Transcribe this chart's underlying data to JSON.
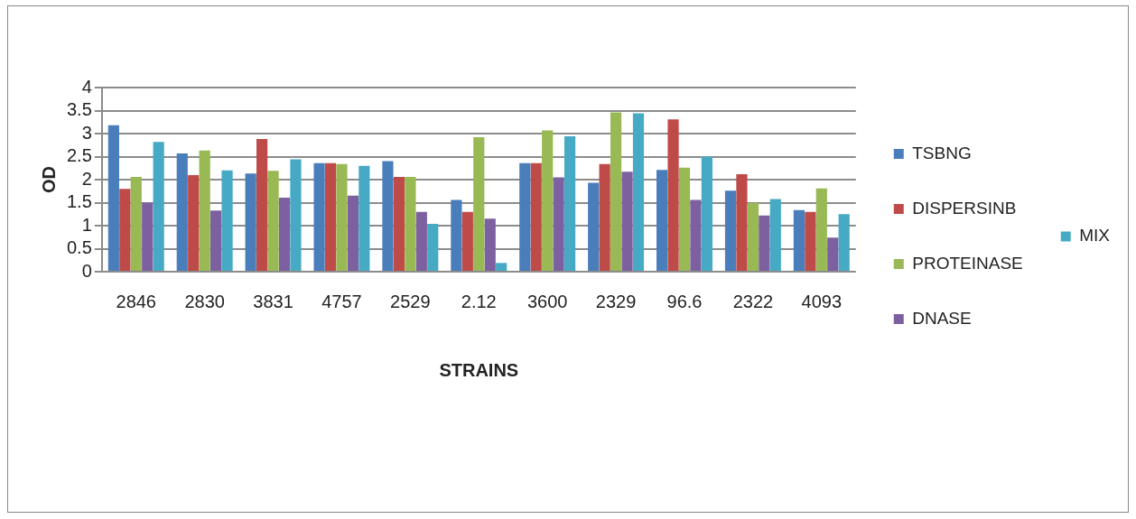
{
  "chart_data": {
    "type": "bar",
    "xlabel": "STRAINS",
    "ylabel": "OD",
    "categories": [
      "2846",
      "2830",
      "3831",
      "4757",
      "2529",
      "2.12",
      "3600",
      "2329",
      "96.6",
      "2322",
      "4093"
    ],
    "series": [
      {
        "name": "TSBNG",
        "color": "#4a7ebb",
        "values": [
          3.18,
          2.57,
          2.13,
          2.36,
          2.4,
          1.56,
          2.36,
          1.93,
          2.21,
          1.76,
          1.34
        ]
      },
      {
        "name": "DISPERSINB",
        "color": "#be4b48",
        "values": [
          1.8,
          2.1,
          2.88,
          2.36,
          2.06,
          1.3,
          2.36,
          2.34,
          3.31,
          2.12,
          1.3
        ]
      },
      {
        "name": "PROTEINASE",
        "color": "#98b954",
        "values": [
          2.06,
          2.63,
          2.19,
          2.34,
          2.06,
          2.92,
          3.07,
          3.46,
          2.26,
          1.49,
          1.81
        ]
      },
      {
        "name": "DNASE",
        "color": "#7d60a0",
        "values": [
          1.5,
          1.33,
          1.61,
          1.65,
          1.3,
          1.15,
          2.05,
          2.17,
          1.56,
          1.22,
          0.74
        ]
      },
      {
        "name": "MIX",
        "color": "#46aac5",
        "values": [
          2.82,
          2.2,
          2.44,
          2.3,
          1.04,
          0.19,
          2.94,
          3.44,
          2.5,
          1.58,
          1.25
        ]
      }
    ],
    "ylim": [
      0,
      4
    ],
    "yticks": [
      0,
      0.5,
      1,
      1.5,
      2,
      2.5,
      3,
      3.5,
      4
    ],
    "grid": "y",
    "legend": "right"
  }
}
